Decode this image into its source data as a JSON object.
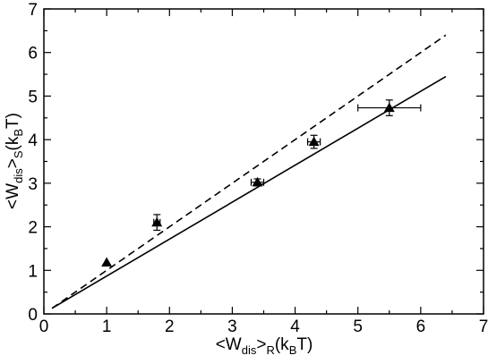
{
  "chart_data": {
    "type": "scatter",
    "xlim": [
      0,
      7
    ],
    "ylim": [
      0,
      7
    ],
    "x_ticks": [
      "0",
      "1",
      "2",
      "3",
      "4",
      "5",
      "6",
      "7"
    ],
    "y_ticks": [
      "0",
      "1",
      "2",
      "3",
      "4",
      "5",
      "6",
      "7"
    ],
    "xlabel": {
      "open": "<W",
      "sub1": "dis",
      "mid": ">",
      "sub2": "R",
      "close": "(k",
      "sub3": "B",
      "end": "T)"
    },
    "ylabel": {
      "open": "<W",
      "sub1": "dis",
      "mid": ">",
      "sub2": "S",
      "close": "(k",
      "sub3": "B",
      "end": "T)"
    },
    "grid": false,
    "points": [
      {
        "x": 1.0,
        "y": 1.18,
        "xerr": 0.0,
        "yerr": 0.0
      },
      {
        "x": 1.8,
        "y": 2.1,
        "xerr": 0.05,
        "yerr": 0.18
      },
      {
        "x": 3.4,
        "y": 3.02,
        "xerr": 0.1,
        "yerr": 0.08
      },
      {
        "x": 4.3,
        "y": 3.95,
        "xerr": 0.1,
        "yerr": 0.15
      },
      {
        "x": 5.5,
        "y": 4.73,
        "xerr": 0.5,
        "yerr": 0.18
      }
    ],
    "lines": [
      {
        "style": "solid",
        "x": [
          0.13,
          6.4
        ],
        "y": [
          0.13,
          5.45
        ]
      },
      {
        "style": "dashed",
        "x": [
          0.13,
          6.4
        ],
        "y": [
          0.13,
          6.4
        ]
      }
    ],
    "colors": {
      "ink": "#000000",
      "background": "#ffffff"
    }
  }
}
